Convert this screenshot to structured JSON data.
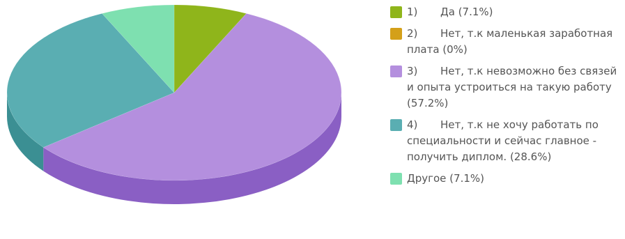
{
  "chart_data": {
    "type": "pie",
    "variant": "3d",
    "title": "",
    "slices": [
      {
        "num": "1)",
        "label": "Да (7.1%)",
        "value": 7.1,
        "color": "#8fb51b",
        "side": "#728f14"
      },
      {
        "num": "2)",
        "label": "Нет, т.к маленькая заработная плата (0%)",
        "value": 0,
        "color": "#d4a019",
        "side": "#a87e10"
      },
      {
        "num": "3)",
        "label": "Нет, т.к невозможно без связей и опыта устроиться на такую работу (57.2%)",
        "value": 57.2,
        "color": "#b48fde",
        "side": "#8a5fc4"
      },
      {
        "num": "4)",
        "label": "Нет, т.к не хочу работать по специальности и сейчас главное - получить диплом. (28.6%)",
        "value": 28.6,
        "color": "#5aaeb2",
        "side": "#3b8f93"
      },
      {
        "num": "",
        "label": "Другое (7.1%)",
        "value": 7.1,
        "color": "#7ee0b0",
        "side": "#5cc493"
      }
    ]
  }
}
